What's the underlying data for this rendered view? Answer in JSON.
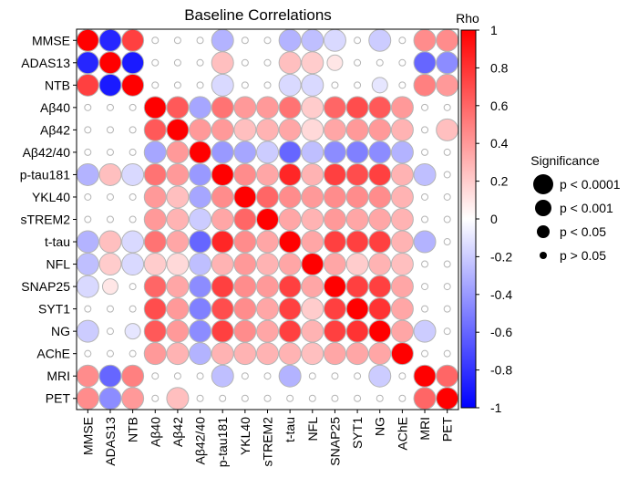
{
  "chart_data": {
    "type": "heatmap",
    "title": "Baseline Correlations",
    "variables": [
      "MMSE",
      "ADAS13",
      "NTB",
      "Aβ40",
      "Aβ42",
      "Aβ42/40",
      "p-tau181",
      "YKL40",
      "sTREM2",
      "t-tau",
      "NFL",
      "SNAP25",
      "SYT1",
      "NG",
      "AChE",
      "MRI",
      "PET"
    ],
    "rho": [
      [
        1.0,
        -0.85,
        0.75,
        0.0,
        0.0,
        0.0,
        -0.3,
        0.0,
        0.0,
        -0.3,
        -0.25,
        -0.15,
        0.0,
        -0.2,
        0.0,
        0.45,
        0.45
      ],
      [
        -0.85,
        1.0,
        -0.9,
        0.0,
        0.0,
        0.0,
        0.25,
        0.0,
        0.0,
        0.25,
        0.2,
        0.1,
        0.0,
        0.0,
        0.0,
        -0.6,
        -0.45
      ],
      [
        0.75,
        -0.9,
        1.0,
        0.0,
        0.0,
        0.0,
        -0.15,
        0.0,
        0.0,
        -0.15,
        -0.15,
        0.0,
        0.0,
        -0.1,
        0.0,
        0.5,
        0.4
      ],
      [
        0.0,
        0.0,
        0.0,
        1.0,
        0.65,
        -0.35,
        0.55,
        0.4,
        0.4,
        0.55,
        0.2,
        0.6,
        0.7,
        0.65,
        0.4,
        0.0,
        0.0
      ],
      [
        0.0,
        0.0,
        0.0,
        0.65,
        1.0,
        0.4,
        0.4,
        0.25,
        0.3,
        0.35,
        0.15,
        0.35,
        0.4,
        0.4,
        0.3,
        0.0,
        0.25
      ],
      [
        0.0,
        0.0,
        0.0,
        -0.35,
        0.4,
        1.0,
        -0.4,
        -0.35,
        -0.2,
        -0.6,
        -0.25,
        -0.45,
        -0.5,
        -0.45,
        -0.3,
        0.0,
        0.0
      ],
      [
        -0.3,
        0.25,
        -0.15,
        0.55,
        0.4,
        -0.4,
        1.0,
        0.45,
        0.35,
        0.85,
        0.3,
        0.75,
        0.7,
        0.75,
        0.3,
        -0.25,
        0.0
      ],
      [
        0.0,
        0.0,
        0.0,
        0.4,
        0.25,
        -0.35,
        0.45,
        1.0,
        0.6,
        0.45,
        0.4,
        0.45,
        0.45,
        0.45,
        0.3,
        0.0,
        0.0
      ],
      [
        0.0,
        0.0,
        0.0,
        0.4,
        0.3,
        -0.2,
        0.35,
        0.6,
        1.0,
        0.35,
        0.3,
        0.4,
        0.35,
        0.35,
        0.3,
        0.0,
        0.0
      ],
      [
        -0.3,
        0.25,
        -0.15,
        0.55,
        0.35,
        -0.6,
        0.85,
        0.45,
        0.35,
        1.0,
        0.35,
        0.75,
        0.75,
        0.75,
        0.3,
        -0.3,
        0.0
      ],
      [
        -0.25,
        0.2,
        -0.15,
        0.2,
        0.15,
        -0.25,
        0.3,
        0.4,
        0.3,
        0.35,
        1.0,
        0.35,
        0.2,
        0.3,
        0.25,
        0.0,
        0.0
      ],
      [
        -0.15,
        0.1,
        0.0,
        0.6,
        0.35,
        -0.45,
        0.75,
        0.45,
        0.4,
        0.75,
        0.35,
        1.0,
        0.75,
        0.75,
        0.35,
        0.0,
        0.0
      ],
      [
        0.0,
        0.0,
        0.0,
        0.7,
        0.4,
        -0.5,
        0.7,
        0.45,
        0.35,
        0.75,
        0.2,
        0.75,
        1.0,
        0.8,
        0.35,
        0.0,
        0.0
      ],
      [
        -0.2,
        0.0,
        -0.1,
        0.65,
        0.4,
        -0.45,
        0.75,
        0.45,
        0.35,
        0.75,
        0.3,
        0.75,
        0.8,
        1.0,
        0.35,
        -0.2,
        0.0
      ],
      [
        0.0,
        0.0,
        0.0,
        0.4,
        0.3,
        -0.3,
        0.3,
        0.3,
        0.3,
        0.3,
        0.25,
        0.35,
        0.35,
        0.35,
        1.0,
        0.0,
        0.0
      ],
      [
        0.45,
        -0.6,
        0.5,
        0.0,
        0.0,
        0.0,
        -0.25,
        0.0,
        0.0,
        -0.3,
        0.0,
        0.0,
        0.0,
        -0.2,
        0.0,
        1.0,
        0.6
      ],
      [
        0.45,
        -0.45,
        0.4,
        0.0,
        0.25,
        0.0,
        0.0,
        0.0,
        0.0,
        0.0,
        0.0,
        0.0,
        0.0,
        0.0,
        0.0,
        0.6,
        1.0
      ]
    ],
    "significance": [
      [
        3,
        3,
        3,
        0,
        0,
        0,
        3,
        0,
        0,
        3,
        3,
        3,
        0,
        3,
        0,
        3,
        3
      ],
      [
        3,
        3,
        3,
        0,
        0,
        0,
        3,
        0,
        0,
        3,
        3,
        1,
        0,
        0,
        0,
        3,
        3
      ],
      [
        3,
        3,
        3,
        0,
        0,
        0,
        3,
        0,
        0,
        3,
        3,
        0,
        0,
        1,
        0,
        3,
        3
      ],
      [
        0,
        0,
        0,
        3,
        3,
        3,
        3,
        3,
        3,
        3,
        3,
        3,
        3,
        3,
        3,
        0,
        0
      ],
      [
        0,
        0,
        0,
        3,
        3,
        3,
        3,
        3,
        3,
        3,
        3,
        3,
        3,
        3,
        3,
        0,
        3
      ],
      [
        0,
        0,
        0,
        3,
        3,
        3,
        3,
        3,
        3,
        3,
        3,
        3,
        3,
        3,
        3,
        0,
        0
      ],
      [
        3,
        3,
        3,
        3,
        3,
        3,
        3,
        3,
        3,
        3,
        3,
        3,
        3,
        3,
        3,
        3,
        0
      ],
      [
        0,
        0,
        0,
        3,
        3,
        3,
        3,
        3,
        3,
        3,
        3,
        3,
        3,
        3,
        3,
        0,
        0
      ],
      [
        0,
        0,
        0,
        3,
        3,
        3,
        3,
        3,
        3,
        3,
        3,
        3,
        3,
        3,
        3,
        0,
        0
      ],
      [
        3,
        3,
        3,
        3,
        3,
        3,
        3,
        3,
        3,
        3,
        3,
        3,
        3,
        3,
        3,
        3,
        0
      ],
      [
        3,
        3,
        3,
        3,
        3,
        3,
        3,
        3,
        3,
        3,
        3,
        3,
        3,
        3,
        3,
        0,
        0
      ],
      [
        3,
        1,
        0,
        3,
        3,
        3,
        3,
        3,
        3,
        3,
        3,
        3,
        3,
        3,
        3,
        0,
        0
      ],
      [
        0,
        0,
        0,
        3,
        3,
        3,
        3,
        3,
        3,
        3,
        3,
        3,
        3,
        3,
        3,
        0,
        0
      ],
      [
        3,
        0,
        1,
        3,
        3,
        3,
        3,
        3,
        3,
        3,
        3,
        3,
        3,
        3,
        3,
        3,
        0
      ],
      [
        0,
        0,
        0,
        3,
        3,
        3,
        3,
        3,
        3,
        3,
        3,
        3,
        3,
        3,
        3,
        0,
        0
      ],
      [
        3,
        3,
        3,
        0,
        0,
        0,
        3,
        0,
        0,
        3,
        0,
        0,
        0,
        3,
        0,
        3,
        3
      ],
      [
        3,
        3,
        3,
        0,
        3,
        0,
        0,
        0,
        0,
        0,
        0,
        0,
        0,
        0,
        0,
        3,
        3
      ]
    ],
    "colorbar": {
      "label": "Rho",
      "ticks": [
        "1",
        "0.8",
        "0.6",
        "0.4",
        "0.2",
        "0",
        "-0.2",
        "-0.4",
        "-0.6",
        "-0.8",
        "-1"
      ],
      "range": [
        -1,
        1
      ],
      "low_color": "#0000ff",
      "mid_color": "#ffffff",
      "high_color": "#ff0000"
    },
    "size_legend": {
      "title": "Significance",
      "entries": [
        "p < 0.0001",
        "p < 0.001",
        "p < 0.05",
        "p > 0.05"
      ]
    },
    "grid": false
  }
}
